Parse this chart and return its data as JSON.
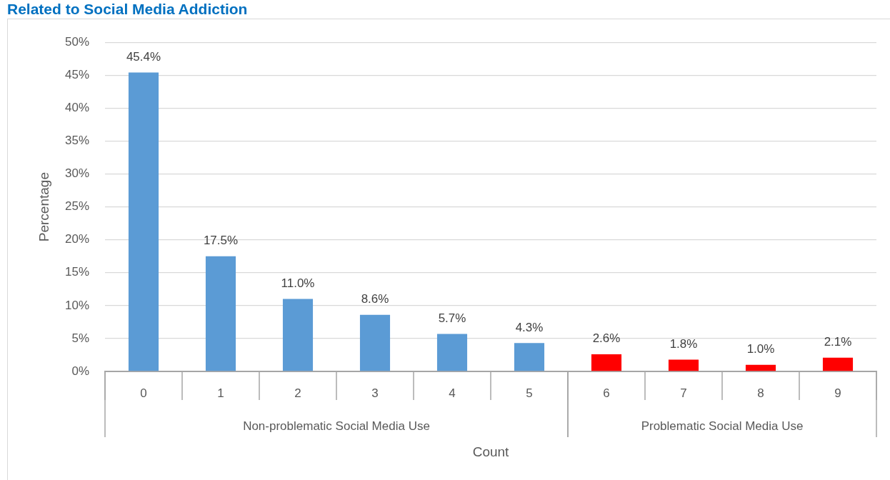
{
  "chart_data": {
    "type": "bar",
    "title": "Related to Social Media Addiction",
    "xlabel": "Count",
    "ylabel": "Percentage",
    "categories": [
      "0",
      "1",
      "2",
      "3",
      "4",
      "5",
      "6",
      "7",
      "8",
      "9"
    ],
    "values": [
      45.4,
      17.5,
      11.0,
      8.6,
      5.7,
      4.3,
      2.6,
      1.8,
      1.0,
      2.1
    ],
    "colors": [
      "#5b9bd5",
      "#5b9bd5",
      "#5b9bd5",
      "#5b9bd5",
      "#5b9bd5",
      "#5b9bd5",
      "#ff0000",
      "#ff0000",
      "#ff0000",
      "#ff0000"
    ],
    "value_labels": [
      "45.4%",
      "17.5%",
      "11.0%",
      "8.6%",
      "5.7%",
      "4.3%",
      "2.6%",
      "1.8%",
      "1.0%",
      "2.1%"
    ],
    "annotations": [
      "Non-problematic Social Media Use",
      "Problematic Social Media Use"
    ],
    "ylim": [
      0,
      50
    ],
    "yticks": [
      {
        "value": 0,
        "label": "0%"
      },
      {
        "value": 5,
        "label": "5%"
      },
      {
        "value": 10,
        "label": "10%"
      },
      {
        "value": 15,
        "label": "15%"
      },
      {
        "value": 20,
        "label": "20%"
      },
      {
        "value": 25,
        "label": "25%"
      },
      {
        "value": 30,
        "label": "30%"
      },
      {
        "value": 35,
        "label": "35%"
      },
      {
        "value": 40,
        "label": "40%"
      },
      {
        "value": 45,
        "label": "45%"
      },
      {
        "value": 50,
        "label": "50%"
      }
    ],
    "grid": "y",
    "legend": false
  }
}
